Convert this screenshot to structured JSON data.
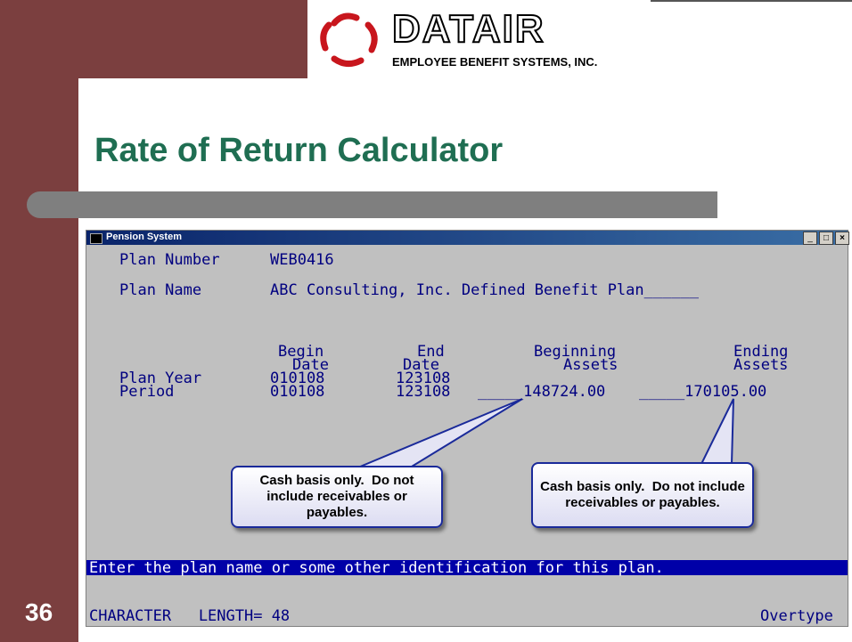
{
  "header": {
    "logo_text": "DATAIR",
    "company": "EMPLOYEE BENEFIT SYSTEMS, INC."
  },
  "title": "Rate of Return Calculator",
  "slide_number": "36",
  "window": {
    "title": "Pension System",
    "fields": [
      {
        "label": "Plan Number",
        "value": "WEB0416"
      },
      {
        "label": "Plan Name",
        "value": "ABC Consulting, Inc. Defined Benefit Plan______"
      }
    ],
    "columns": [
      {
        "line1": "Begin",
        "line2": "Date"
      },
      {
        "line1": "End",
        "line2": "Date"
      },
      {
        "line1": "Beginning",
        "line2": "Assets"
      },
      {
        "line1": "Ending",
        "line2": "Assets"
      }
    ],
    "rows": [
      {
        "label": "Plan Year",
        "begin": "010108",
        "end": "123108"
      },
      {
        "label": "Period",
        "begin": "010108",
        "end": "123108",
        "beginning_assets": "_____148724.00",
        "ending_assets": "_____170105.00"
      }
    ],
    "callouts": [
      "Cash basis only.  Do not include receivables or payables.",
      "Cash basis only.  Do not include receivables or payables."
    ],
    "message": "Enter the plan name or some other identification for this plan.",
    "status_left": "CHARACTER   LENGTH= 48",
    "status_right": "Overtype"
  }
}
